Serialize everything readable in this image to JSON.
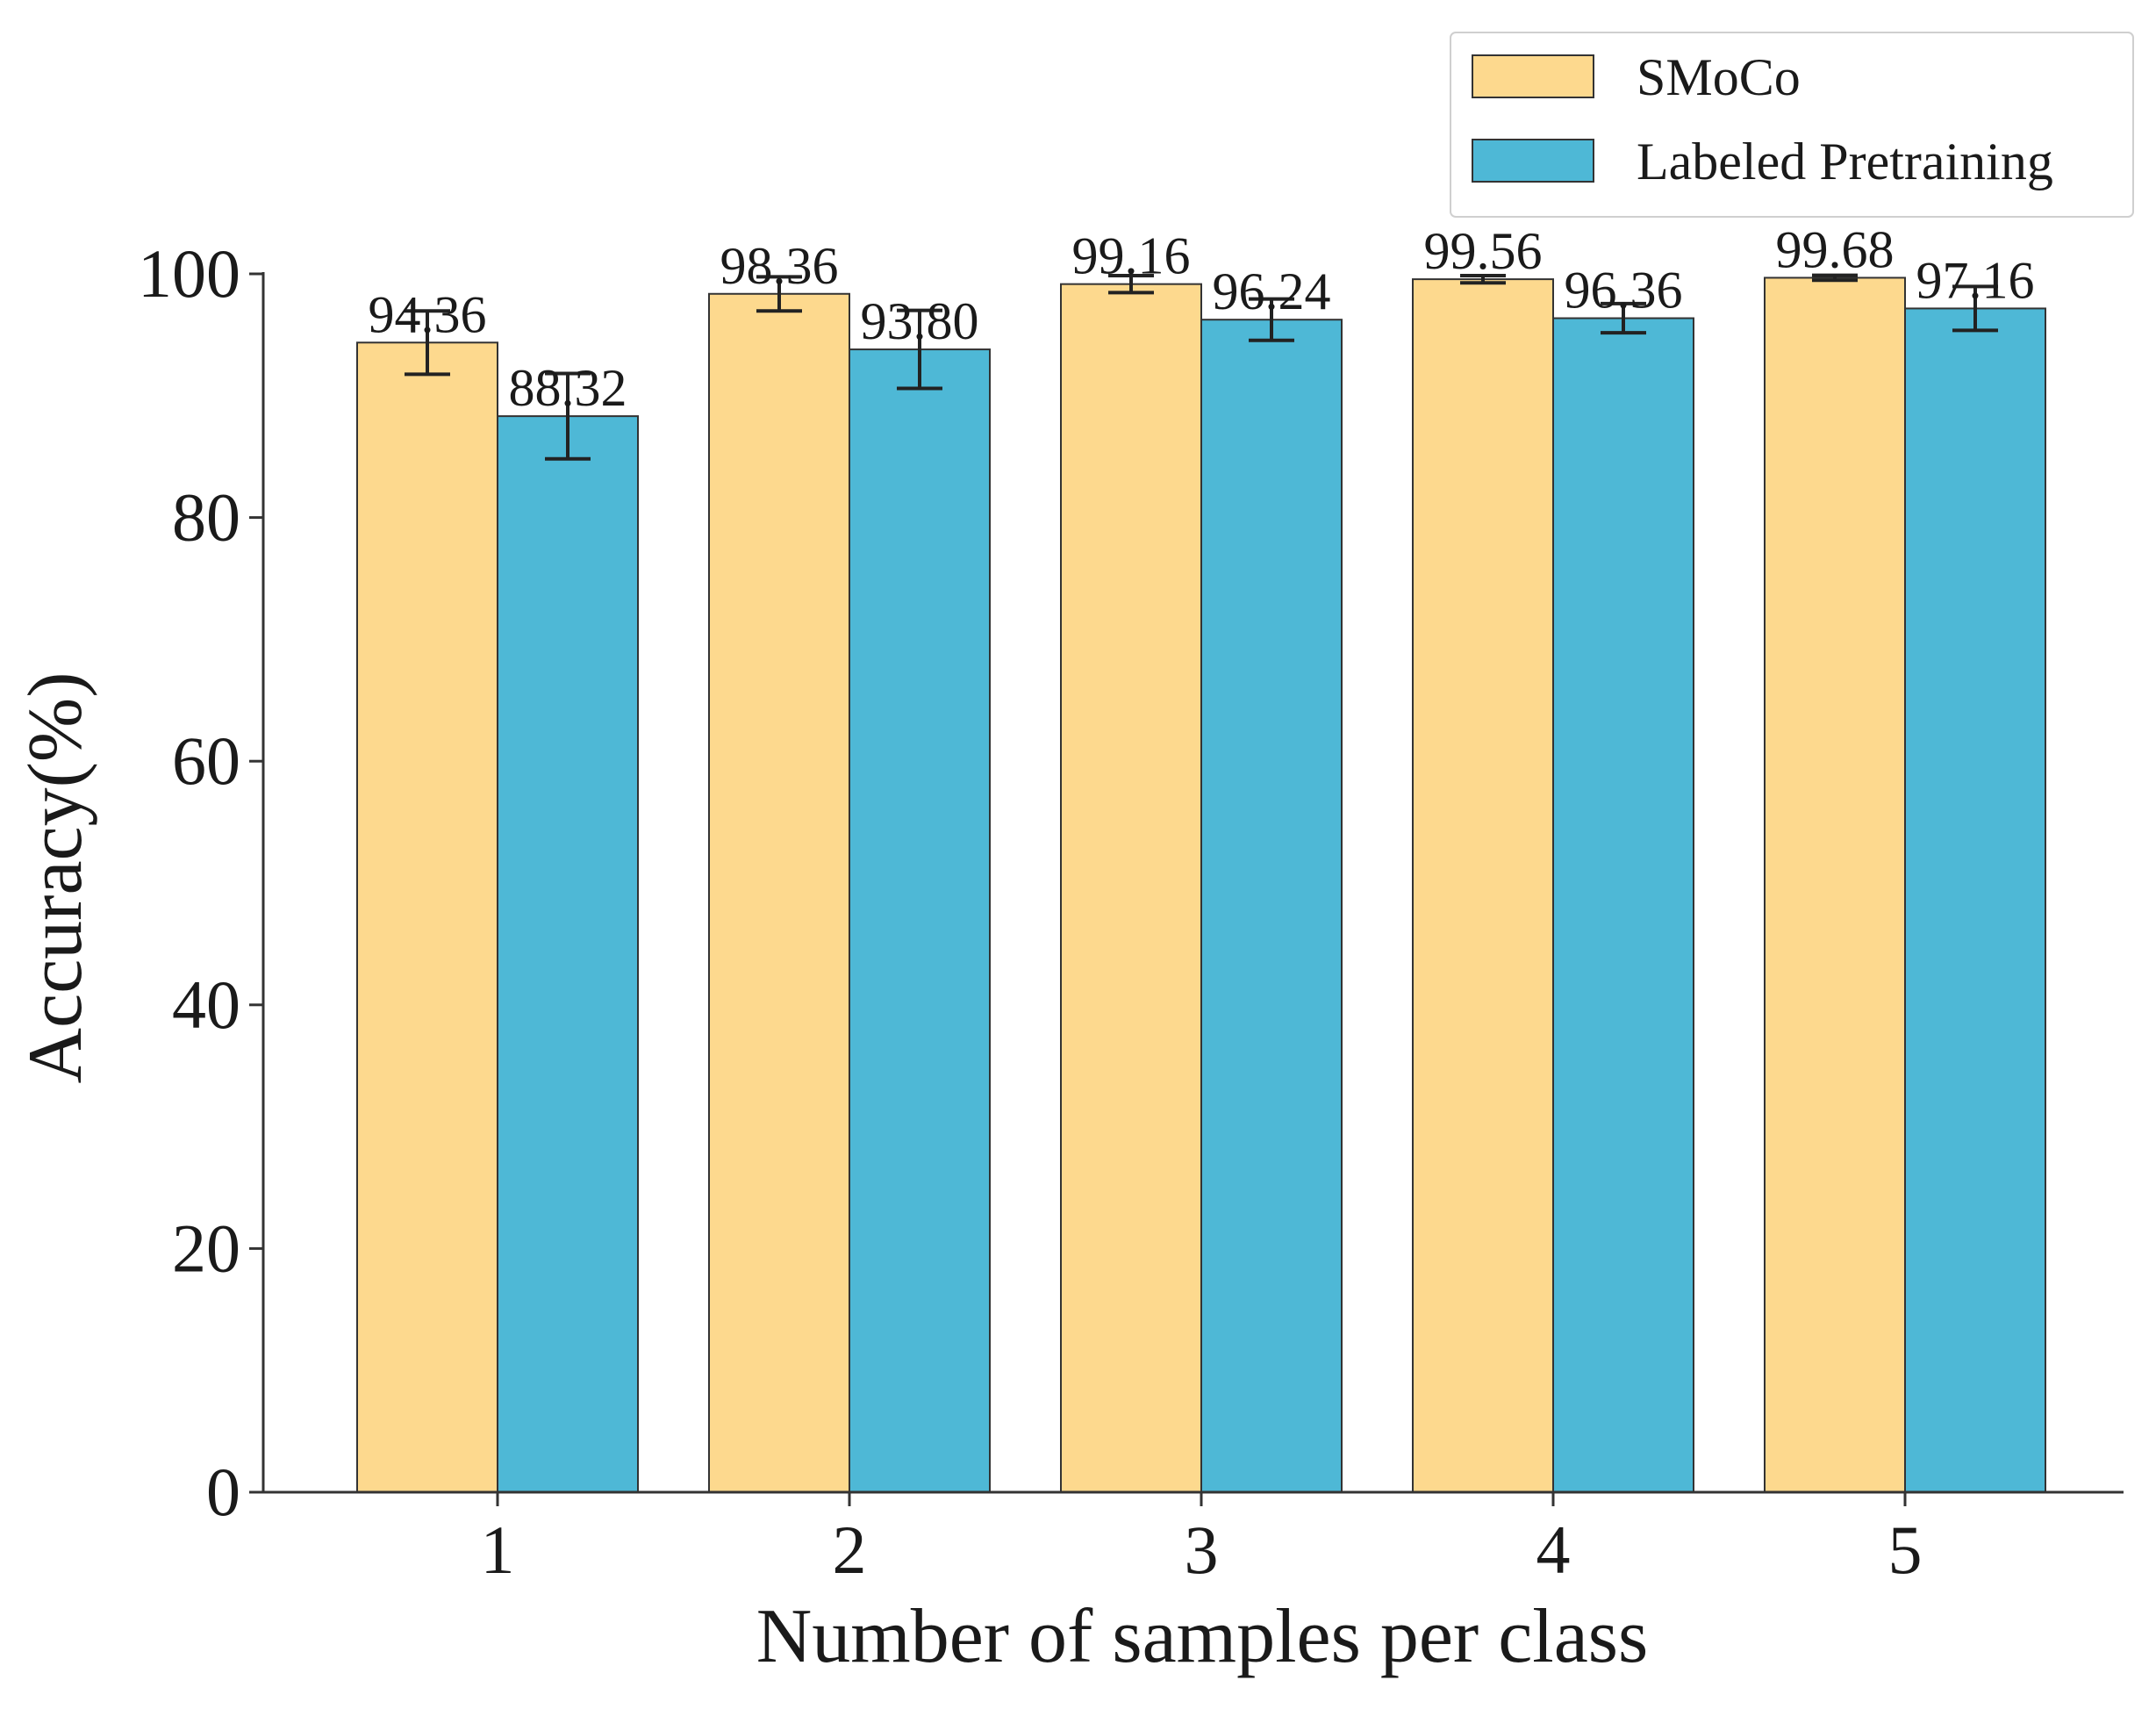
{
  "chart_data": {
    "type": "bar",
    "title": "",
    "xlabel": "Number of samples per class",
    "ylabel": "Accuracy(%)",
    "categories": [
      "1",
      "2",
      "3",
      "4",
      "5"
    ],
    "ylim": [
      0,
      100
    ],
    "yticks": [
      0,
      20,
      40,
      60,
      80,
      100
    ],
    "grid": false,
    "legend_position": "top-right",
    "series": [
      {
        "name": "SMoCo",
        "color": "#fdd98e",
        "values": [
          94.36,
          98.36,
          99.16,
          99.56,
          99.68
        ],
        "value_labels": [
          "94.36",
          "98.36",
          "99.16",
          "99.56",
          "99.68"
        ],
        "errors": [
          2.6,
          1.4,
          0.7,
          0.3,
          0.2
        ]
      },
      {
        "name": "Labeled Pretraining",
        "color": "#4eb8d6",
        "values": [
          88.32,
          93.8,
          96.24,
          96.36,
          97.16
        ],
        "value_labels": [
          "88.32",
          "93.80",
          "96.24",
          "96.36",
          "97.16"
        ],
        "errors": [
          3.5,
          3.2,
          1.7,
          1.2,
          1.8
        ]
      }
    ]
  }
}
